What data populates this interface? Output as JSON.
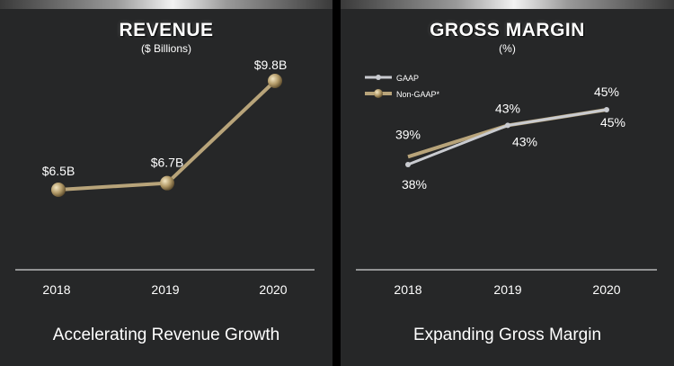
{
  "colors": {
    "gold": "#b8a47a",
    "gaap": "#c9cbd0",
    "panel_bg": "#262728"
  },
  "chart_data": [
    {
      "type": "line",
      "title": "REVENUE",
      "subtitle": "($ Billions)",
      "caption": "Accelerating Revenue Growth",
      "categories": [
        "2018",
        "2019",
        "2020"
      ],
      "series": [
        {
          "values": [
            6.5,
            6.7,
            9.8
          ],
          "labels": [
            "$6.5B",
            "$6.7B",
            "$9.8B"
          ]
        }
      ],
      "ylim": [
        5.0,
        10.0
      ],
      "grid": false,
      "legend": "none"
    },
    {
      "type": "line",
      "title": "GROSS MARGIN",
      "subtitle": "(%)",
      "caption": "Expanding Gross Margin",
      "categories": [
        "2018",
        "2019",
        "2020"
      ],
      "series": [
        {
          "name": "GAAP",
          "values": [
            38,
            43,
            45
          ],
          "labels": [
            "38%",
            "43%",
            "45%"
          ]
        },
        {
          "name": "Non-GAAP*",
          "values": [
            39,
            43,
            45
          ],
          "labels": [
            "39%",
            "43%",
            "45%"
          ]
        }
      ],
      "ylim": [
        30,
        50
      ],
      "grid": false,
      "legend": "top-left"
    }
  ]
}
